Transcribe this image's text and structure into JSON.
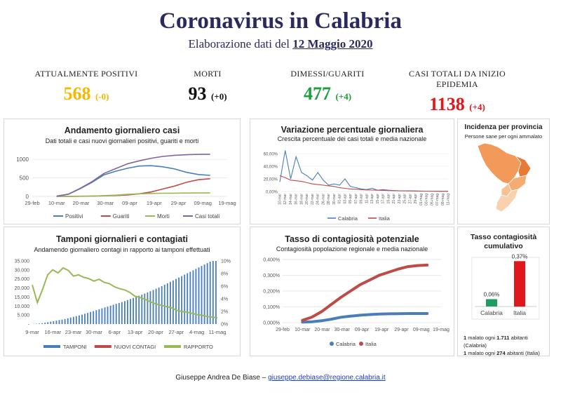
{
  "header": {
    "title": "Coronavirus in Calabria",
    "subtitle_prefix": "Elaborazione dati del",
    "date": "12 Maggio 2020"
  },
  "stats": [
    {
      "label": "ATTUALMENTE POSITIVI",
      "value": "568",
      "delta": "(-0)",
      "color": "#f5b800"
    },
    {
      "label": "MORTI",
      "value": "93",
      "delta": "(+0)",
      "color": "#111111"
    },
    {
      "label": "DIMESSI/GUARITI",
      "value": "477",
      "delta": "(+4)",
      "color": "#1e9e3e"
    },
    {
      "label": "CASI TOTALI DA INIZIO EPIDEMIA",
      "value": "1138",
      "delta": "(+4)",
      "color": "#e0181b"
    }
  ],
  "panels": {
    "daily": {
      "title": "Andamento giornaliero casi",
      "subtitle": "Dati totali e casi nuovi giornalieri positivi, guariti e morti"
    },
    "variation": {
      "title": "Variazione percentuale giornaliera",
      "subtitle": "Crescita percentuale dei casi totali e media nazionale"
    },
    "province": {
      "title": "Incidenza per provincia",
      "subtitle": "Persone sane per ogni ammalato"
    },
    "tests": {
      "title": "Tamponi giornalieri e contagiati",
      "subtitle": "Andamendo giornaliero contagi in rapporto ai tamponi effettuati"
    },
    "contagion": {
      "title": "Tasso di contagiosità potenziale",
      "subtitle": "Contagiosità popolazione regionale e media nazionale"
    },
    "cumulative": {
      "title": "Tasso contagiosità cumulativo",
      "note1_a": "1",
      "note1_b": " malato ogni ",
      "note1_c": "1.711",
      "note1_d": " abitanti (Calabria)",
      "note2_a": "1",
      "note2_b": " malato ogni ",
      "note2_c": "274",
      "note2_d": " abitanti (Italia)"
    }
  },
  "footer": {
    "author": "Giuseppe Andrea De Biase –",
    "email": "giuseppe.debiase@regione.calabria.it"
  },
  "colors": {
    "positivi": "#4a7ebb",
    "guariti": "#be4b48",
    "morti": "#98b954",
    "totali": "#7f64a0",
    "calabria": "#4a7ebb",
    "italia": "#be4b48",
    "tamponi": "#4a7ebb",
    "contagi": "#be4b48",
    "rapporto": "#98b954",
    "bar_calabria": "#1e9e5e",
    "bar_italia": "#e0181b"
  },
  "chart_data": [
    {
      "type": "line",
      "title": "Andamento giornaliero casi",
      "subtitle": "Dati totali e casi nuovi giornalieri positivi, guariti e morti",
      "x_ticks": [
        "29-feb",
        "10-mar",
        "20-mar",
        "30-mar",
        "09-apr",
        "19-apr",
        "29-apr",
        "09-mag",
        "19-mag"
      ],
      "y_ticks": [
        "0",
        "500",
        "1000"
      ],
      "ylim": [
        0,
        1250
      ],
      "x": [
        "10-mar",
        "15-mar",
        "20-mar",
        "25-mar",
        "30-mar",
        "04-apr",
        "09-apr",
        "14-apr",
        "19-apr",
        "24-apr",
        "29-apr",
        "04-mag",
        "09-mag",
        "12-mag"
      ],
      "series": [
        {
          "name": "Positivi",
          "values": [
            5,
            60,
            210,
            380,
            580,
            680,
            760,
            820,
            830,
            800,
            740,
            650,
            590,
            568
          ]
        },
        {
          "name": "Guariti",
          "values": [
            0,
            0,
            3,
            8,
            15,
            25,
            40,
            70,
            120,
            200,
            280,
            380,
            450,
            477
          ]
        },
        {
          "name": "Morti",
          "values": [
            0,
            1,
            5,
            10,
            20,
            35,
            55,
            70,
            80,
            85,
            88,
            91,
            93,
            93
          ]
        },
        {
          "name": "Casi totali",
          "values": [
            5,
            61,
            218,
            400,
            620,
            750,
            880,
            960,
            1030,
            1080,
            1110,
            1125,
            1135,
            1138
          ]
        }
      ],
      "legend": "bottom"
    },
    {
      "type": "line",
      "title": "Variazione percentuale giornaliera",
      "subtitle": "Crescita percentuale dei casi totali e media nazionale",
      "y_ticks": [
        "0,00%",
        "20,00%",
        "40,00%",
        "60,00%"
      ],
      "ylim": [
        0,
        70
      ],
      "x_ticks": [
        "10-mar",
        "12-mar",
        "14-mar",
        "16-mar",
        "18-mar",
        "20-mar",
        "22-mar",
        "24-mar",
        "26-mar",
        "28-mar",
        "30-mar",
        "01-apr",
        "03-apr",
        "05-apr",
        "07-apr",
        "09-apr",
        "11-apr",
        "13-apr",
        "15-apr",
        "17-apr",
        "19-apr",
        "21-apr",
        "23-apr",
        "25-apr",
        "27-apr",
        "29-apr",
        "01-mag",
        "03-mag",
        "05-mag",
        "07-mag",
        "09-mag",
        "11-mag"
      ],
      "series": [
        {
          "name": "Calabria",
          "values": [
            15,
            65,
            20,
            55,
            30,
            25,
            18,
            30,
            18,
            10,
            12,
            10,
            20,
            8,
            6,
            4,
            3,
            5,
            2,
            3,
            2,
            1.5,
            1,
            1,
            1,
            0.8,
            0.5,
            0.5,
            0.4,
            0.3,
            0.3,
            0.3
          ]
        },
        {
          "name": "Italia",
          "values": [
            25,
            22,
            18,
            17,
            16,
            14,
            12,
            11,
            10,
            9,
            8,
            6,
            5,
            4,
            3.5,
            3,
            2.5,
            2.2,
            2,
            1.8,
            1.5,
            1.3,
            1.1,
            1,
            0.9,
            0.8,
            0.7,
            0.6,
            0.5,
            0.4,
            0.3,
            0.3
          ]
        }
      ],
      "legend": "bottom"
    },
    {
      "type": "bar",
      "title": "Tamponi giornalieri e contagiati",
      "subtitle": "Andamendo giornaliero contagi in rapporto ai tamponi effettuati",
      "x_ticks": [
        "9-mar",
        "16-mar",
        "23-mar",
        "30-mar",
        "6-apr",
        "13-apr",
        "20-apr",
        "27-apr",
        "4-mag",
        "11-mag"
      ],
      "y_ticks": [
        "-",
        "5.000",
        "10.000",
        "15.000",
        "20.000",
        "25.000",
        "30.000",
        "35.000"
      ],
      "y2_ticks": [
        "0%",
        "2%",
        "4%",
        "6%",
        "8%",
        "10%"
      ],
      "ylim": [
        0,
        35000
      ],
      "y2lim": [
        0,
        10
      ],
      "series": [
        {
          "name": "TAMPONI",
          "values": [
            50,
            150,
            300,
            500,
            750,
            1000,
            1300,
            1600,
            1900,
            2200,
            2500,
            2800,
            3200,
            3600,
            4000,
            4400,
            4800,
            5200,
            5700,
            6200,
            6700,
            7200,
            7700,
            8200,
            8700,
            9200,
            9700,
            10200,
            10700,
            11200,
            11700,
            12200,
            12700,
            13300,
            13900,
            14500,
            15100,
            15700,
            16300,
            16900,
            17500,
            18200,
            18900,
            19600,
            20300,
            21000,
            21800,
            22600,
            23400,
            24200,
            25000,
            25800,
            26600,
            27400,
            28200,
            29000,
            29800,
            30600,
            31400,
            32200,
            33000,
            33800,
            34600,
            35000,
            35000
          ]
        },
        {
          "name": "NUOVI CONTAGI"
        },
        {
          "name": "RAPPORTO",
          "values": [
            6.2,
            3.4,
            5.5,
            7.8,
            8.6,
            8.1,
            8.9,
            8.5,
            7.6,
            7.8,
            7.4,
            7.2,
            6.8,
            7.1,
            6.6,
            6.4,
            5.9,
            5.6,
            5.4,
            5.0,
            4.4,
            4.2,
            3.9,
            3.5,
            3.2,
            3.0,
            2.8,
            2.6,
            2.2,
            2.0,
            1.9,
            1.7,
            1.5,
            1.4,
            1.2,
            1.1,
            1.0
          ]
        }
      ],
      "legend": "bottom"
    },
    {
      "type": "line",
      "title": "Tasso di contagiosità potenziale",
      "subtitle": "Contagiosità popolazione regionale e media nazionale",
      "x_ticks": [
        "29-feb",
        "10-mar",
        "20-mar",
        "30-mar",
        "09-apr",
        "19-apr",
        "29-apr",
        "09-mag",
        "19-mag"
      ],
      "y_ticks": [
        "0,000%",
        "0,100%",
        "0,200%",
        "0,300%",
        "0,400%"
      ],
      "ylim": [
        0,
        0.4
      ],
      "x": [
        "10-mar",
        "15-mar",
        "20-mar",
        "25-mar",
        "30-mar",
        "04-apr",
        "09-apr",
        "14-apr",
        "19-apr",
        "24-apr",
        "29-apr",
        "04-mag",
        "09-mag",
        "12-mag"
      ],
      "series": [
        {
          "name": "Calabria",
          "values": [
            0.003,
            0.006,
            0.012,
            0.022,
            0.034,
            0.041,
            0.047,
            0.051,
            0.054,
            0.056,
            0.057,
            0.058,
            0.058,
            0.058
          ]
        },
        {
          "name": "Italia",
          "values": [
            0.015,
            0.035,
            0.07,
            0.115,
            0.16,
            0.2,
            0.24,
            0.27,
            0.3,
            0.32,
            0.34,
            0.355,
            0.362,
            0.365
          ]
        }
      ],
      "legend": "bottom"
    },
    {
      "type": "bar",
      "title": "Tasso contagiosità cumulativo",
      "categories": [
        "Calabria",
        "Italia"
      ],
      "values": [
        0.06,
        0.37
      ],
      "data_labels": [
        "0,06%",
        "0,37%"
      ]
    }
  ]
}
